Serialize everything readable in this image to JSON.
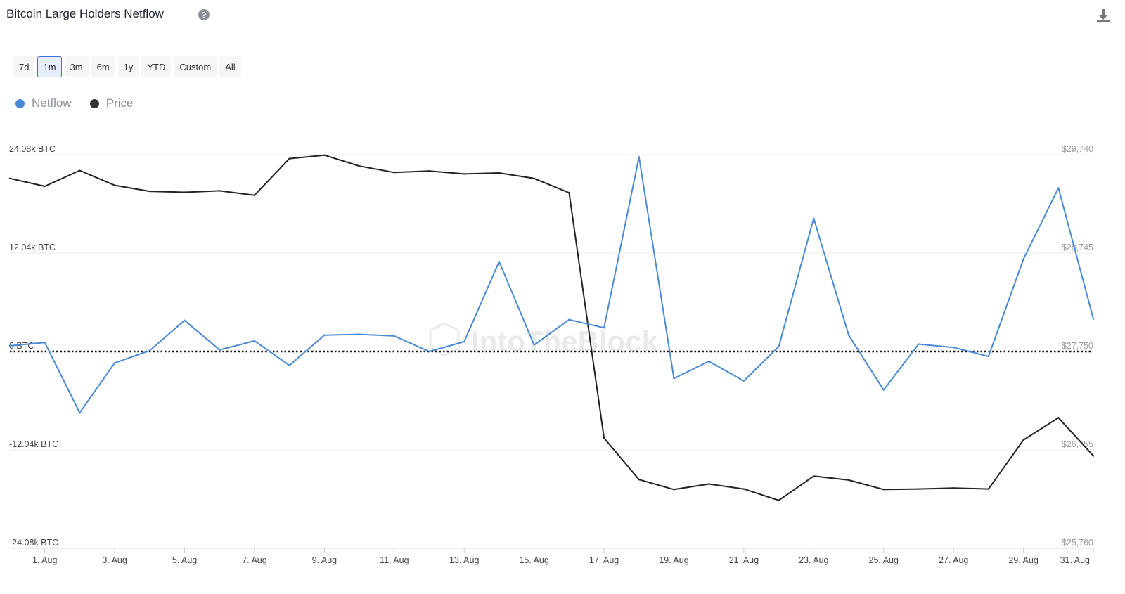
{
  "header": {
    "title": "Bitcoin Large Holders Netflow",
    "help_icon": "question-circle-icon",
    "download_icon": "download-icon"
  },
  "time_ranges": [
    {
      "label": "7d",
      "active": false
    },
    {
      "label": "1m",
      "active": true
    },
    {
      "label": "3m",
      "active": false
    },
    {
      "label": "6m",
      "active": false
    },
    {
      "label": "1y",
      "active": false
    },
    {
      "label": "YTD",
      "active": false
    },
    {
      "label": "Custom",
      "active": false
    },
    {
      "label": "All",
      "active": false
    }
  ],
  "watermark": "IntoTheBlock",
  "colors": {
    "netflow": "#4a8ad4",
    "price": "#222222",
    "zero_line": "#111111",
    "grid": "#eeeeee",
    "axis_text": "#444444",
    "right_axis_text": "#999999"
  },
  "chart_data": {
    "type": "line",
    "title": "Bitcoin Large Holders Netflow",
    "x": [
      "31 Jul",
      "1 Aug",
      "2 Aug",
      "3 Aug",
      "4 Aug",
      "5 Aug",
      "6 Aug",
      "7 Aug",
      "8 Aug",
      "9 Aug",
      "10 Aug",
      "11 Aug",
      "12 Aug",
      "13 Aug",
      "14 Aug",
      "15 Aug",
      "16 Aug",
      "17 Aug",
      "18 Aug",
      "19 Aug",
      "20 Aug",
      "21 Aug",
      "22 Aug",
      "23 Aug",
      "24 Aug",
      "25 Aug",
      "26 Aug",
      "27 Aug",
      "28 Aug",
      "29 Aug",
      "30 Aug",
      "31 Aug"
    ],
    "x_tick_labels": [
      "1. Aug",
      "3. Aug",
      "5. Aug",
      "7. Aug",
      "9. Aug",
      "11. Aug",
      "13. Aug",
      "15. Aug",
      "17. Aug",
      "19. Aug",
      "21. Aug",
      "23. Aug",
      "25. Aug",
      "27. Aug",
      "29. Aug",
      "31. Aug"
    ],
    "series": [
      {
        "name": "Netflow",
        "axis": "left",
        "unit": "BTC",
        "values": [
          700,
          1100,
          -7500,
          -1400,
          100,
          3800,
          200,
          1300,
          -1700,
          2000,
          2100,
          1900,
          0,
          1200,
          11000,
          800,
          3900,
          2900,
          23800,
          -3300,
          -1200,
          -3600,
          600,
          16300,
          2000,
          -4700,
          900,
          500,
          -600,
          11300,
          20000,
          4000
        ]
      },
      {
        "name": "Price",
        "axis": "right",
        "unit": "USD",
        "values": [
          29500,
          29420,
          29580,
          29430,
          29370,
          29360,
          29375,
          29330,
          29700,
          29735,
          29625,
          29560,
          29575,
          29545,
          29555,
          29500,
          29355,
          26875,
          26455,
          26355,
          26410,
          26360,
          26245,
          26490,
          26450,
          26355,
          26360,
          26370,
          26360,
          26855,
          27080,
          26695
        ]
      }
    ],
    "left_axis": {
      "min": -24080,
      "max": 24080,
      "tick_labels": [
        "24.08k BTC",
        "12.04k BTC",
        "0 BTC",
        "-12.04k BTC",
        "-24.08k BTC"
      ],
      "tick_values": [
        24080,
        12040,
        0,
        -12040,
        -24080
      ]
    },
    "right_axis": {
      "min": 25760,
      "max": 29740,
      "tick_labels": [
        "$29,740",
        "$28,745",
        "$27,750",
        "$26,755",
        "$25,760"
      ],
      "tick_values": [
        29740,
        28745,
        27750,
        26755,
        25760
      ]
    },
    "zero_line": "dotted",
    "grid": true,
    "legend": "top-left"
  }
}
